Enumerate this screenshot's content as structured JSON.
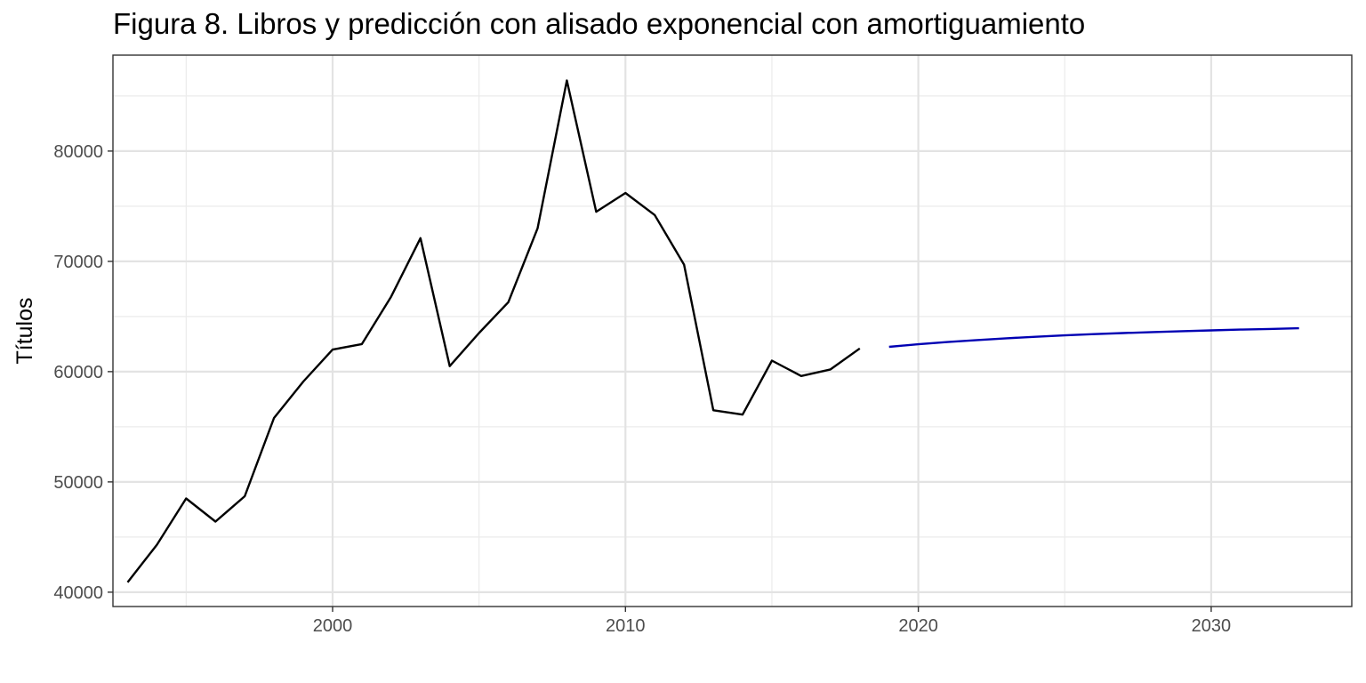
{
  "chart_data": {
    "type": "line",
    "title": "Figura 8. Libros y predicción con alisado exponencial con amortiguamiento",
    "xlabel": "",
    "ylabel": "Títulos",
    "xlim": [
      1992.5,
      2034.8
    ],
    "ylim": [
      38700,
      88700
    ],
    "x_ticks": [
      2000,
      2010,
      2020,
      2030
    ],
    "y_ticks": [
      40000,
      50000,
      60000,
      70000,
      80000
    ],
    "grid": true,
    "legend": "none",
    "series": [
      {
        "color": "#000000",
        "points": [
          [
            1993,
            40900
          ],
          [
            1994,
            44300
          ],
          [
            1995,
            48500
          ],
          [
            1996,
            46400
          ],
          [
            1997,
            48700
          ],
          [
            1998,
            55800
          ],
          [
            1999,
            59100
          ],
          [
            2000,
            62000
          ],
          [
            2001,
            62500
          ],
          [
            2002,
            66800
          ],
          [
            2003,
            72100
          ],
          [
            2004,
            60500
          ],
          [
            2005,
            63500
          ],
          [
            2006,
            66300
          ],
          [
            2007,
            73000
          ],
          [
            2008,
            86400
          ],
          [
            2009,
            74500
          ],
          [
            2010,
            76200
          ],
          [
            2011,
            74200
          ],
          [
            2012,
            69700
          ],
          [
            2013,
            56500
          ],
          [
            2014,
            56100
          ],
          [
            2015,
            61000
          ],
          [
            2016,
            59600
          ],
          [
            2017,
            60200
          ],
          [
            2018,
            62100
          ]
        ]
      },
      {
        "color": "#0000b3",
        "points": [
          [
            2019,
            62250
          ],
          [
            2020,
            62480
          ],
          [
            2021,
            62680
          ],
          [
            2022,
            62860
          ],
          [
            2023,
            63020
          ],
          [
            2024,
            63160
          ],
          [
            2025,
            63290
          ],
          [
            2026,
            63400
          ],
          [
            2027,
            63500
          ],
          [
            2028,
            63590
          ],
          [
            2029,
            63670
          ],
          [
            2030,
            63740
          ],
          [
            2031,
            63810
          ],
          [
            2032,
            63870
          ],
          [
            2033,
            63930
          ]
        ]
      }
    ]
  }
}
